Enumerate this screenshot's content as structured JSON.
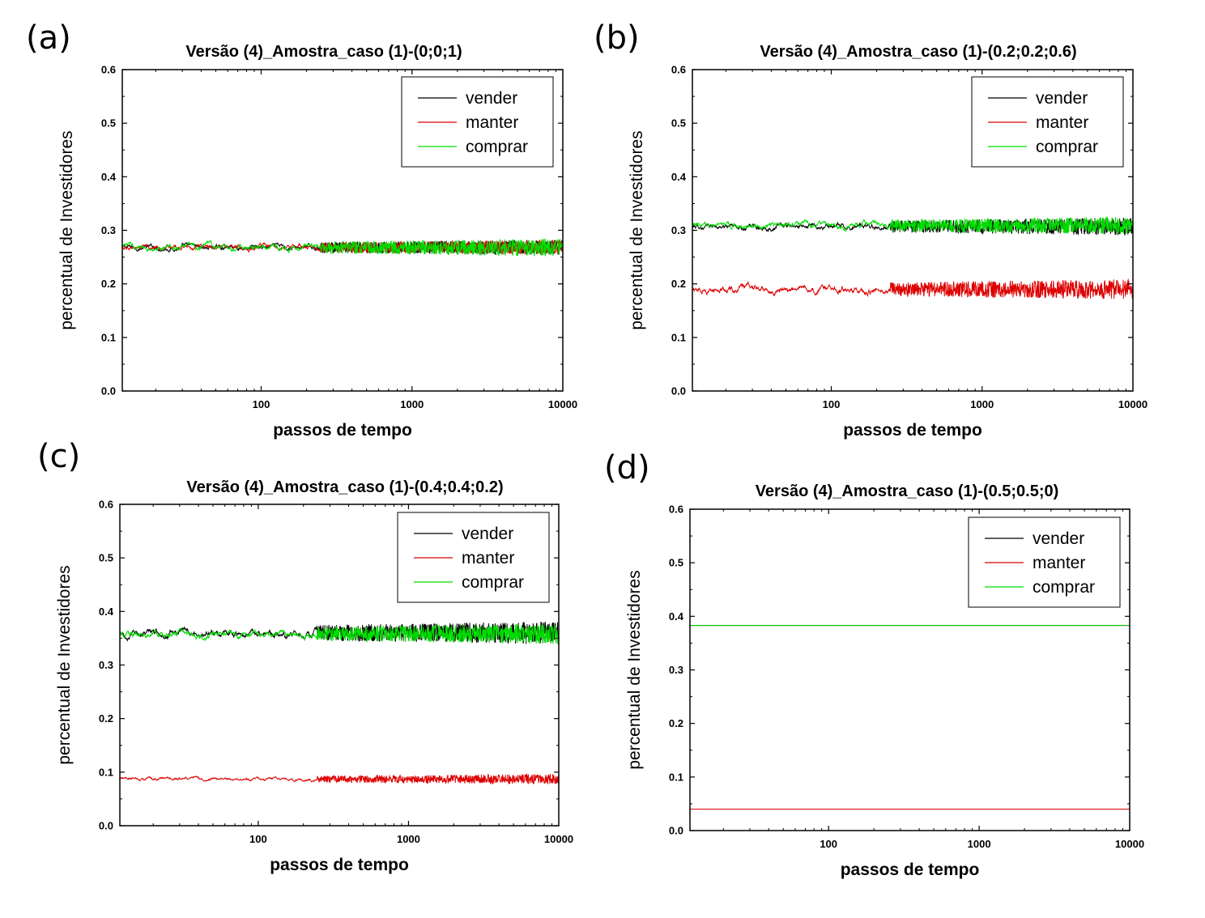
{
  "chart_data": [
    {
      "type": "line",
      "panel_label": "(a)",
      "title": "Versão (4)_Amostra_caso (1)-(0;0;1)",
      "xlabel": "passos de tempo",
      "ylabel": "percentual de Investidores",
      "x_scale": "log",
      "xlim": [
        12,
        10000
      ],
      "ylim": [
        0,
        0.6
      ],
      "x_ticks": [
        100,
        1000,
        10000
      ],
      "x_tick_labels": [
        "100",
        "1000",
        "10000"
      ],
      "y_ticks": [
        0.0,
        0.1,
        0.2,
        0.3,
        0.4,
        0.5,
        0.6
      ],
      "y_tick_labels": [
        "0.0",
        "0.1",
        "0.2",
        "0.3",
        "0.4",
        "0.5",
        "0.6"
      ],
      "grid": false,
      "legend_position": "top-right",
      "series": [
        {
          "name": "vender",
          "color": "#000000",
          "mean": 0.268,
          "noise_amplitude": 0.012
        },
        {
          "name": "manter",
          "color": "#dd0000",
          "mean": 0.268,
          "noise_amplitude": 0.012
        },
        {
          "name": "comprar",
          "color": "#00dd00",
          "mean": 0.268,
          "noise_amplitude": 0.014
        }
      ]
    },
    {
      "type": "line",
      "panel_label": "(b)",
      "title": "Versão (4)_Amostra_caso (1)-(0.2;0.2;0.6)",
      "xlabel": "passos de tempo",
      "ylabel": "percentual de Investidores",
      "x_scale": "log",
      "xlim": [
        12,
        10000
      ],
      "ylim": [
        0,
        0.6
      ],
      "x_ticks": [
        100,
        1000,
        10000
      ],
      "x_tick_labels": [
        "100",
        "1000",
        "10000"
      ],
      "y_ticks": [
        0.0,
        0.1,
        0.2,
        0.3,
        0.4,
        0.5,
        0.6
      ],
      "y_tick_labels": [
        "0.0",
        "0.1",
        "0.2",
        "0.3",
        "0.4",
        "0.5",
        "0.6"
      ],
      "grid": false,
      "legend_position": "top-right",
      "series": [
        {
          "name": "vender",
          "color": "#000000",
          "mean": 0.307,
          "noise_amplitude": 0.014
        },
        {
          "name": "manter",
          "color": "#dd0000",
          "mean": 0.19,
          "noise_amplitude": 0.016
        },
        {
          "name": "comprar",
          "color": "#00dd00",
          "mean": 0.309,
          "noise_amplitude": 0.014
        }
      ]
    },
    {
      "type": "line",
      "panel_label": "(c)",
      "title": "Versão (4)_Amostra_caso (1)-(0.4;0.4;0.2)",
      "xlabel": "passos de tempo",
      "ylabel": "percentual de Investidores",
      "x_scale": "log",
      "xlim": [
        12,
        10000
      ],
      "ylim": [
        0,
        0.6
      ],
      "x_ticks": [
        100,
        1000,
        10000
      ],
      "x_tick_labels": [
        "100",
        "1000",
        "10000"
      ],
      "y_ticks": [
        0.0,
        0.1,
        0.2,
        0.3,
        0.4,
        0.5,
        0.6
      ],
      "y_tick_labels": [
        "0.0",
        "0.1",
        "0.2",
        "0.3",
        "0.4",
        "0.5",
        "0.6"
      ],
      "grid": false,
      "legend_position": "top-right",
      "series": [
        {
          "name": "vender",
          "color": "#000000",
          "mean": 0.36,
          "noise_amplitude": 0.018
        },
        {
          "name": "manter",
          "color": "#dd0000",
          "mean": 0.087,
          "noise_amplitude": 0.008
        },
        {
          "name": "comprar",
          "color": "#00dd00",
          "mean": 0.358,
          "noise_amplitude": 0.016
        }
      ]
    },
    {
      "type": "line",
      "panel_label": "(d)",
      "title": "Versão (4)_Amostra_caso (1)-(0.5;0.5;0)",
      "xlabel": "passos de tempo",
      "ylabel": "percentual de Investidores",
      "x_scale": "log",
      "xlim": [
        12,
        10000
      ],
      "ylim": [
        0,
        0.6
      ],
      "x_ticks": [
        100,
        1000,
        10000
      ],
      "x_tick_labels": [
        "100",
        "1000",
        "10000"
      ],
      "y_ticks": [
        0.0,
        0.1,
        0.2,
        0.3,
        0.4,
        0.5,
        0.6
      ],
      "y_tick_labels": [
        "0.0",
        "0.1",
        "0.2",
        "0.3",
        "0.4",
        "0.5",
        "0.6"
      ],
      "grid": false,
      "legend_position": "top-right",
      "series": [
        {
          "name": "vender",
          "color": "#000000",
          "mean": 0.383,
          "noise_amplitude": 0.0
        },
        {
          "name": "manter",
          "color": "#dd0000",
          "mean": 0.04,
          "noise_amplitude": 0.0
        },
        {
          "name": "comprar",
          "color": "#00dd00",
          "mean": 0.383,
          "noise_amplitude": 0.0
        }
      ]
    }
  ]
}
